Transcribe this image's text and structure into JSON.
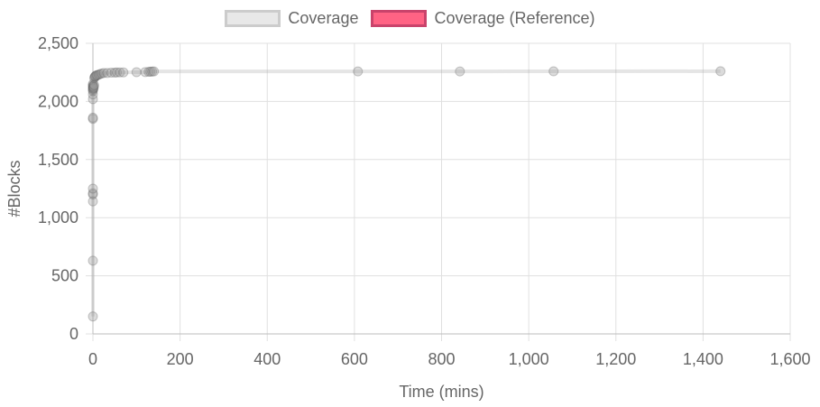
{
  "chart_data": {
    "type": "scatter",
    "legend": [
      {
        "label": "Coverage",
        "fill": "#e8e8e8",
        "border": "#cccccc"
      },
      {
        "label": "Coverage (Reference)",
        "fill": "#ff6384",
        "border": "#c9436b"
      }
    ],
    "xlabel": "Time (mins)",
    "ylabel": "#Blocks",
    "xlim": [
      0,
      1600
    ],
    "ylim": [
      0,
      2500
    ],
    "xticks": [
      "0",
      "200",
      "400",
      "600",
      "800",
      "1,000",
      "1,200",
      "1,400",
      "1,600"
    ],
    "yticks": [
      "0",
      "500",
      "1,000",
      "1,500",
      "2,000",
      "2,500"
    ],
    "grid": true,
    "legend_position": "top",
    "series": [
      {
        "name": "Coverage",
        "color": "#999999",
        "x": [
          0,
          0,
          0,
          0,
          0,
          0,
          0,
          0,
          0,
          0,
          0,
          0,
          0,
          0,
          0,
          0,
          0,
          1,
          1,
          2,
          3,
          3,
          4,
          5,
          6,
          8,
          10,
          13,
          16,
          20,
          25,
          33,
          42,
          50,
          55,
          62,
          70,
          100,
          120,
          128,
          132,
          136,
          140,
          608,
          842,
          1057,
          1440
        ],
        "y": [
          150,
          630,
          1140,
          1200,
          1210,
          1250,
          1850,
          1860,
          2020,
          2060,
          2090,
          2100,
          2110,
          2120,
          2130,
          2140,
          2150,
          2110,
          2130,
          2120,
          2140,
          2200,
          2210,
          2215,
          2220,
          2225,
          2225,
          2230,
          2235,
          2240,
          2245,
          2245,
          2248,
          2248,
          2250,
          2250,
          2250,
          2252,
          2253,
          2255,
          2256,
          2257,
          2258,
          2258,
          2258,
          2259,
          2260
        ]
      }
    ]
  }
}
